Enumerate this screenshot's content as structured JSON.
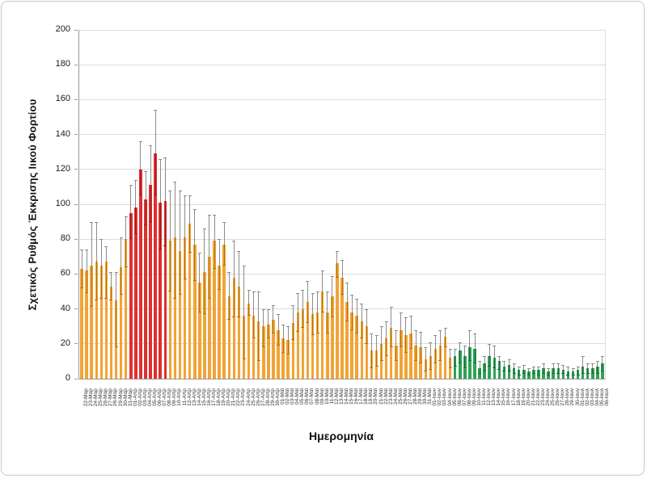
{
  "figure": {
    "x_title": "Ημερομηνία",
    "y_title": "Σχετικός Ρυθμός Έκκρισης Ιικού Φορτίου"
  },
  "chart_data": {
    "type": "bar",
    "title": "",
    "xlabel": "Ημερομηνία",
    "ylabel": "Σχετικός Ρυθμός Έκκρισης Ιικού Φορτίου",
    "ylim": [
      0,
      200
    ],
    "y_ticks": [
      0,
      20,
      40,
      60,
      80,
      100,
      120,
      140,
      160,
      180,
      200
    ],
    "grid": "horizontal",
    "legend_position": "none",
    "error_bars": true,
    "categories": [
      "22-Μαρ",
      "23-Μαρ",
      "24-Μαρ",
      "25-Μαρ",
      "26-Μαρ",
      "27-Μαρ",
      "28-Μαρ",
      "29-Μαρ",
      "30-Μαρ",
      "31-Μαρ",
      "01-Απρ",
      "02-Απρ",
      "03-Απρ",
      "04-Απρ",
      "05-Απρ",
      "06-Απρ",
      "07-Απρ",
      "08-Απρ",
      "09-Απρ",
      "10-Απρ",
      "11-Απρ",
      "12-Απρ",
      "13-Απρ",
      "14-Απρ",
      "15-Απρ",
      "16-Απρ",
      "17-Απρ",
      "18-Απρ",
      "19-Απρ",
      "20-Απρ",
      "21-Απρ",
      "22-Απρ",
      "23-Απρ",
      "24-Απρ",
      "25-Απρ",
      "26-Απρ",
      "27-Απρ",
      "28-Απρ",
      "29-Απρ",
      "30-Απρ",
      "01-Μαϊ",
      "02-Μαϊ",
      "03-Μαϊ",
      "04-Μαϊ",
      "05-Μαϊ",
      "06-Μαϊ",
      "07-Μαϊ",
      "08-Μαϊ",
      "09-Μαϊ",
      "10-Μαϊ",
      "11-Μαϊ",
      "12-Μαϊ",
      "13-Μαϊ",
      "14-Μαϊ",
      "15-Μαϊ",
      "16-Μαϊ",
      "17-Μαϊ",
      "18-Μαϊ",
      "19-Μαϊ",
      "20-Μαϊ",
      "21-Μαϊ",
      "22-Μαϊ",
      "23-Μαϊ",
      "24-Μαϊ",
      "25-Μαϊ",
      "26-Μαϊ",
      "27-Μαϊ",
      "28-Μαϊ",
      "29-Μαϊ",
      "30-Μαϊ",
      "31-Μαϊ",
      "01-Ιουν",
      "02-Ιουν",
      "03-Ιουν",
      "04-Ιουν",
      "05-Ιουν",
      "06-Ιουν",
      "07-Ιουν",
      "08-Ιουν",
      "09-Ιουν",
      "10-Ιουν",
      "11-Ιουν",
      "12-Ιουν",
      "13-Ιουν",
      "14-Ιουν",
      "15-Ιουν",
      "16-Ιουν",
      "17-Ιουν",
      "18-Ιουν",
      "19-Ιουν",
      "20-Ιουν",
      "21-Ιουν",
      "22-Ιουν",
      "23-Ιουν",
      "24-Ιουν",
      "25-Ιουν",
      "26-Ιουν",
      "27-Ιουν",
      "28-Ιουν",
      "29-Ιουν",
      "30-Ιουν",
      "01-Ιουλ",
      "02-Ιουλ",
      "03-Ιουλ",
      "04-Ιουλ",
      "05-Ιουλ",
      "06-Ιουλ"
    ],
    "values": [
      63,
      62,
      65,
      67,
      65,
      67,
      53,
      45,
      64,
      80,
      95,
      98,
      120,
      103,
      111,
      129,
      101,
      102,
      79,
      81,
      73,
      81,
      89,
      77,
      55,
      61,
      70,
      79,
      65,
      77,
      47,
      58,
      53,
      36,
      43,
      36,
      33,
      30,
      31,
      34,
      28,
      23,
      22,
      32,
      38,
      40,
      44,
      37,
      38,
      50,
      38,
      47,
      66,
      58,
      44,
      38,
      36,
      33,
      30,
      16,
      16,
      20,
      23,
      29,
      19,
      28,
      25,
      26,
      19,
      18,
      11,
      13,
      17,
      19,
      24,
      12,
      13,
      16,
      13,
      18,
      17,
      6,
      9,
      13,
      12,
      10,
      7,
      8,
      6,
      5,
      5,
      4,
      5,
      5,
      6,
      4,
      6,
      6,
      5,
      4,
      4,
      5,
      7,
      6,
      6,
      7,
      9
    ],
    "error_low": [
      52,
      49,
      41,
      45,
      46,
      46,
      45,
      18,
      48,
      64,
      80,
      83,
      105,
      88,
      90,
      105,
      74,
      76,
      50,
      46,
      48,
      57,
      72,
      56,
      38,
      37,
      46,
      63,
      51,
      65,
      34,
      35,
      35,
      11,
      36,
      23,
      10,
      18,
      23,
      26,
      19,
      15,
      14,
      22,
      27,
      29,
      32,
      25,
      26,
      38,
      26,
      35,
      58,
      48,
      33,
      28,
      26,
      23,
      20,
      6,
      7,
      10,
      13,
      18,
      10,
      18,
      15,
      17,
      10,
      9,
      4,
      5,
      9,
      10,
      18,
      6,
      7,
      9,
      6,
      10,
      9,
      3,
      4,
      7,
      6,
      5,
      4,
      4,
      3,
      2,
      3,
      2,
      3,
      2,
      3,
      2,
      3,
      3,
      3,
      2,
      2,
      2,
      3,
      3,
      3,
      3,
      4
    ],
    "error_high": [
      74,
      74,
      90,
      90,
      80,
      76,
      61,
      61,
      81,
      93,
      111,
      114,
      136,
      119,
      134,
      154,
      126,
      127,
      108,
      113,
      108,
      105,
      105,
      97,
      72,
      86,
      94,
      94,
      80,
      90,
      61,
      79,
      73,
      65,
      51,
      50,
      50,
      40,
      40,
      42,
      37,
      31,
      30,
      42,
      49,
      51,
      56,
      49,
      50,
      62,
      50,
      59,
      73,
      68,
      55,
      48,
      46,
      43,
      40,
      26,
      25,
      30,
      33,
      41,
      28,
      38,
      35,
      36,
      28,
      27,
      18,
      21,
      25,
      28,
      29,
      17,
      17,
      21,
      19,
      28,
      26,
      10,
      13,
      20,
      19,
      13,
      10,
      11,
      9,
      7,
      8,
      6,
      7,
      7,
      9,
      6,
      9,
      9,
      8,
      7,
      6,
      7,
      13,
      9,
      9,
      10,
      13
    ],
    "color_groups": [
      {
        "start": 0,
        "count": 10,
        "bar": "#F2A336",
        "error_inner": "#B07414"
      },
      {
        "start": 10,
        "count": 8,
        "bar": "#E02F2F",
        "error_inner": "#9E1B1B"
      },
      {
        "start": 18,
        "count": 58,
        "bar": "#F2A336",
        "error_inner": "#B07414"
      },
      {
        "start": 76,
        "count": 31,
        "bar": "#2FA156",
        "error_inner": "#1C6B38"
      }
    ],
    "error_color": "#8C8C8C",
    "gridline_color": "#DCDCDC",
    "axis_color": "#9A9A9A",
    "text_color": "#1A1A1A"
  }
}
